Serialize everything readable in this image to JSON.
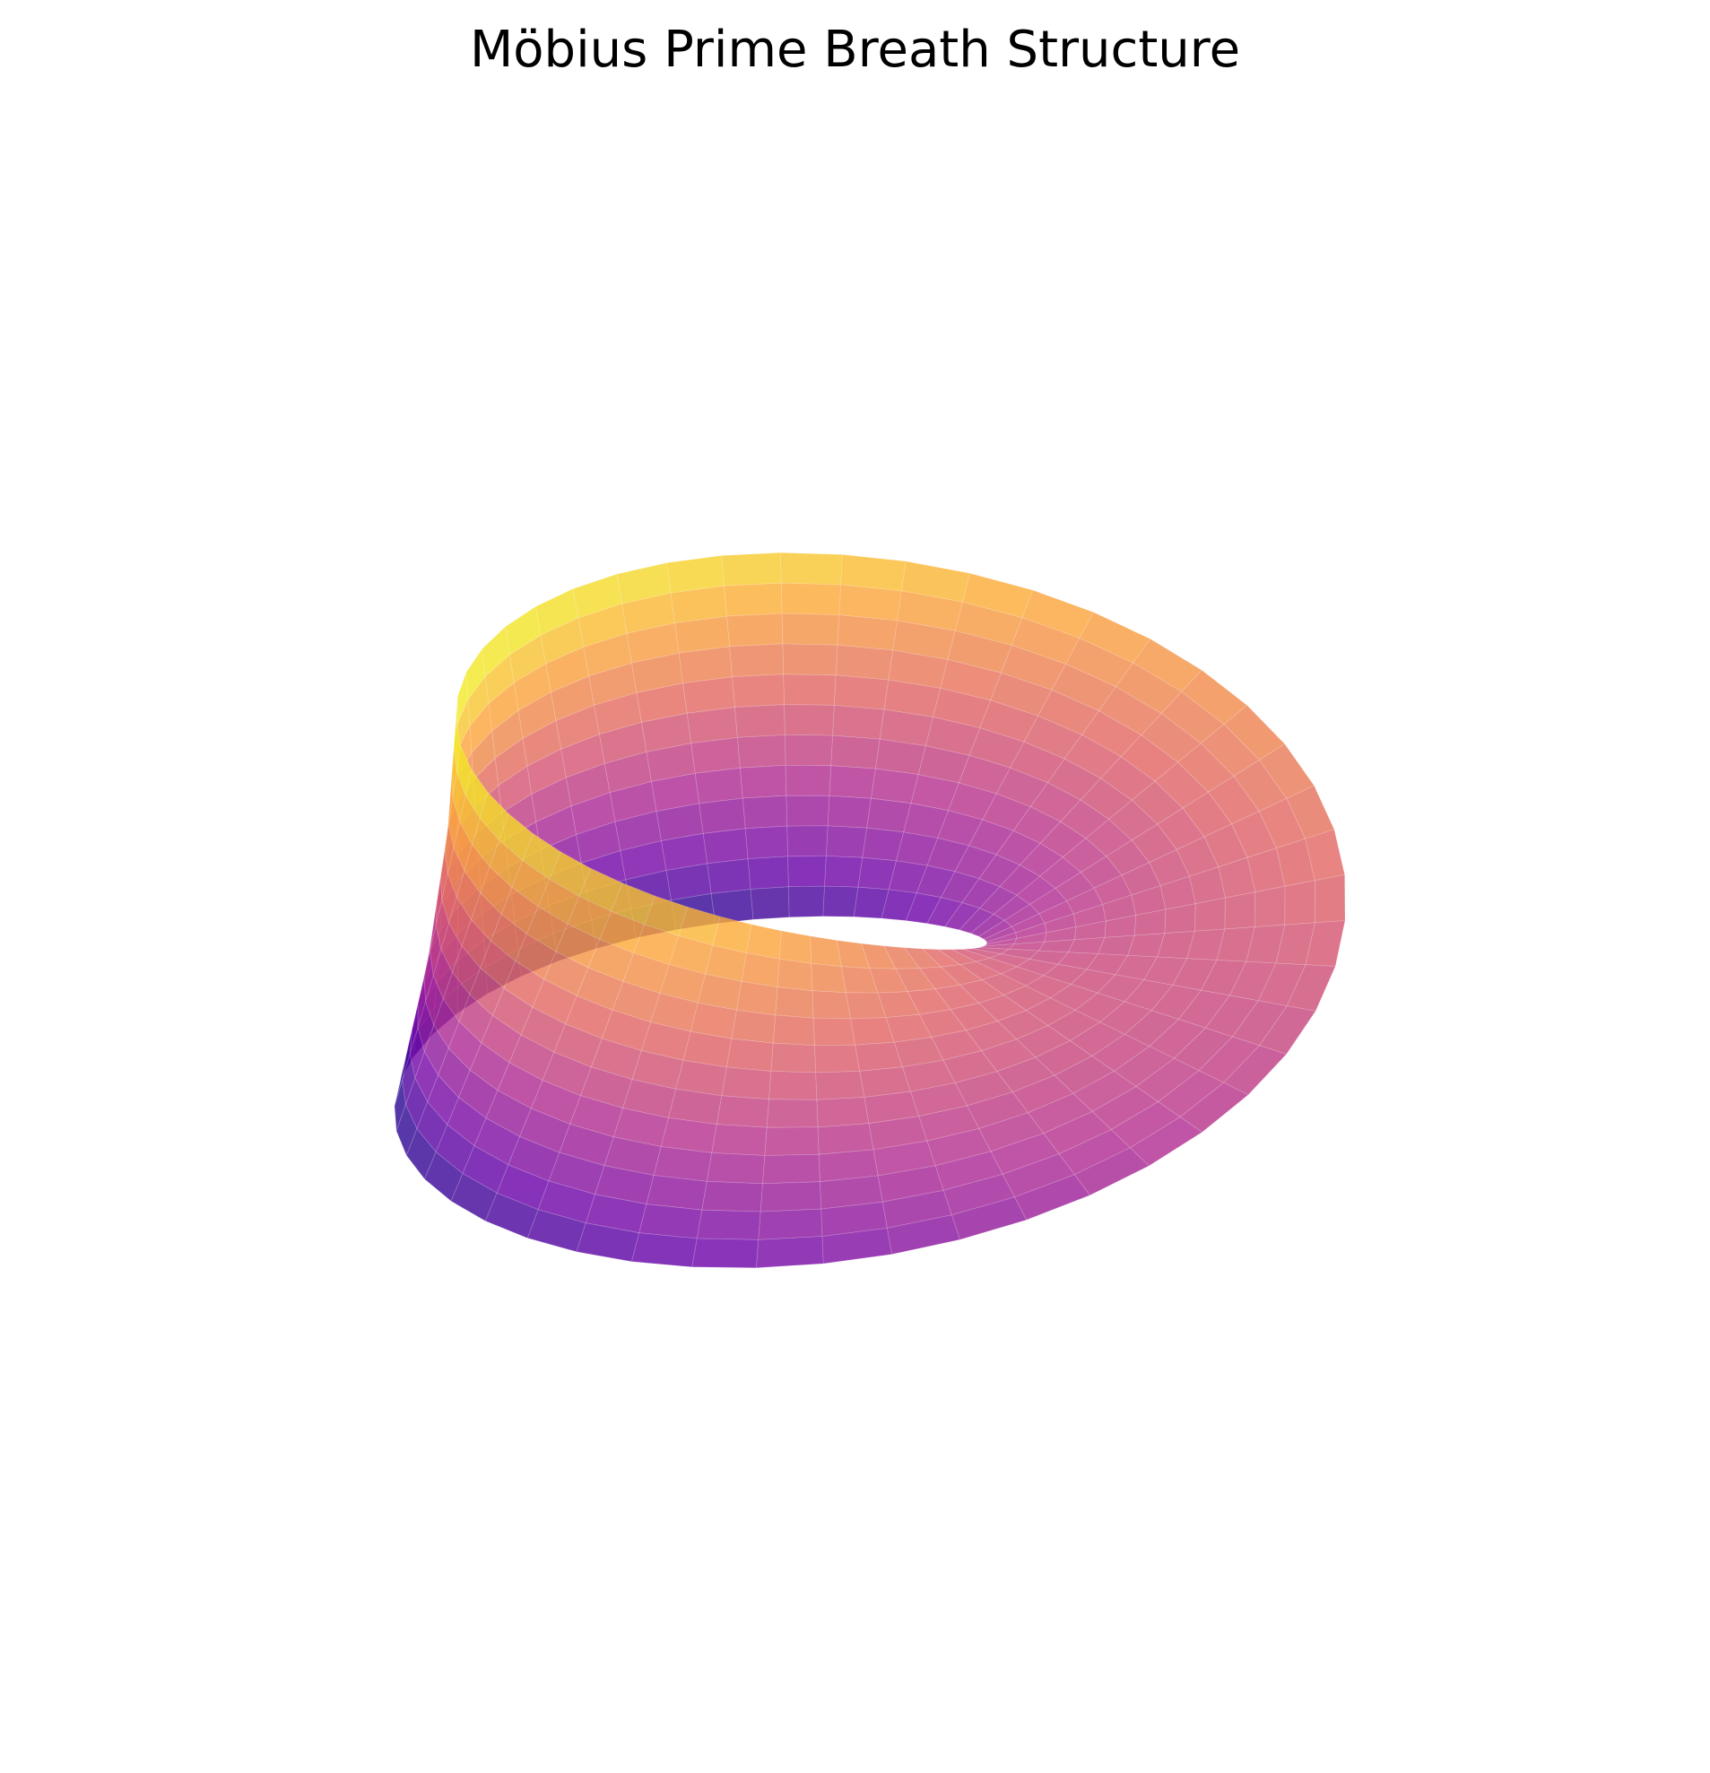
{
  "chart_data": {
    "type": "surface3d",
    "title": "Möbius Prime Breath Structure",
    "surface": "mobius_strip",
    "colormap": "plasma",
    "color_stops": [
      "#0d0887",
      "#6a00a8",
      "#b12a90",
      "#e16462",
      "#fca636",
      "#f0f921"
    ],
    "axes_visible": false,
    "grid": false,
    "mesh_lines": true,
    "u_divisions": 48,
    "v_divisions": 12,
    "alpha": 0.8
  }
}
